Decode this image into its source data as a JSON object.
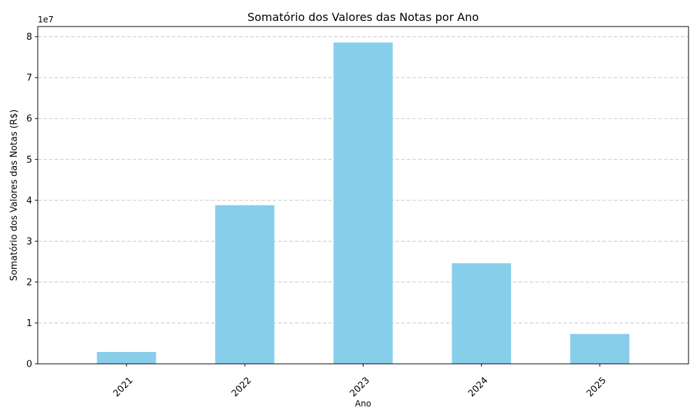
{
  "chart_data": {
    "type": "bar",
    "title": "Somatório dos Valores das Notas por Ano",
    "xlabel": "Ano",
    "ylabel": "Somatório dos Valores das Notas (R$)",
    "categories": [
      "2021",
      "2022",
      "2023",
      "2024",
      "2025"
    ],
    "values": [
      2900000,
      38800000,
      78600000,
      24600000,
      7300000
    ],
    "ylim": [
      0,
      82500000
    ],
    "yticks": [
      0,
      10000000,
      20000000,
      30000000,
      40000000,
      50000000,
      60000000,
      70000000,
      80000000
    ],
    "ytick_labels": [
      "0",
      "1",
      "2",
      "3",
      "4",
      "5",
      "6",
      "7",
      "8"
    ],
    "y_offset_label": "1e7",
    "grid": "y-dashed",
    "bar_color": "#87ceeb",
    "grid_color": "#c8c8c8",
    "x_tick_rotation": 45,
    "legend": "none"
  }
}
